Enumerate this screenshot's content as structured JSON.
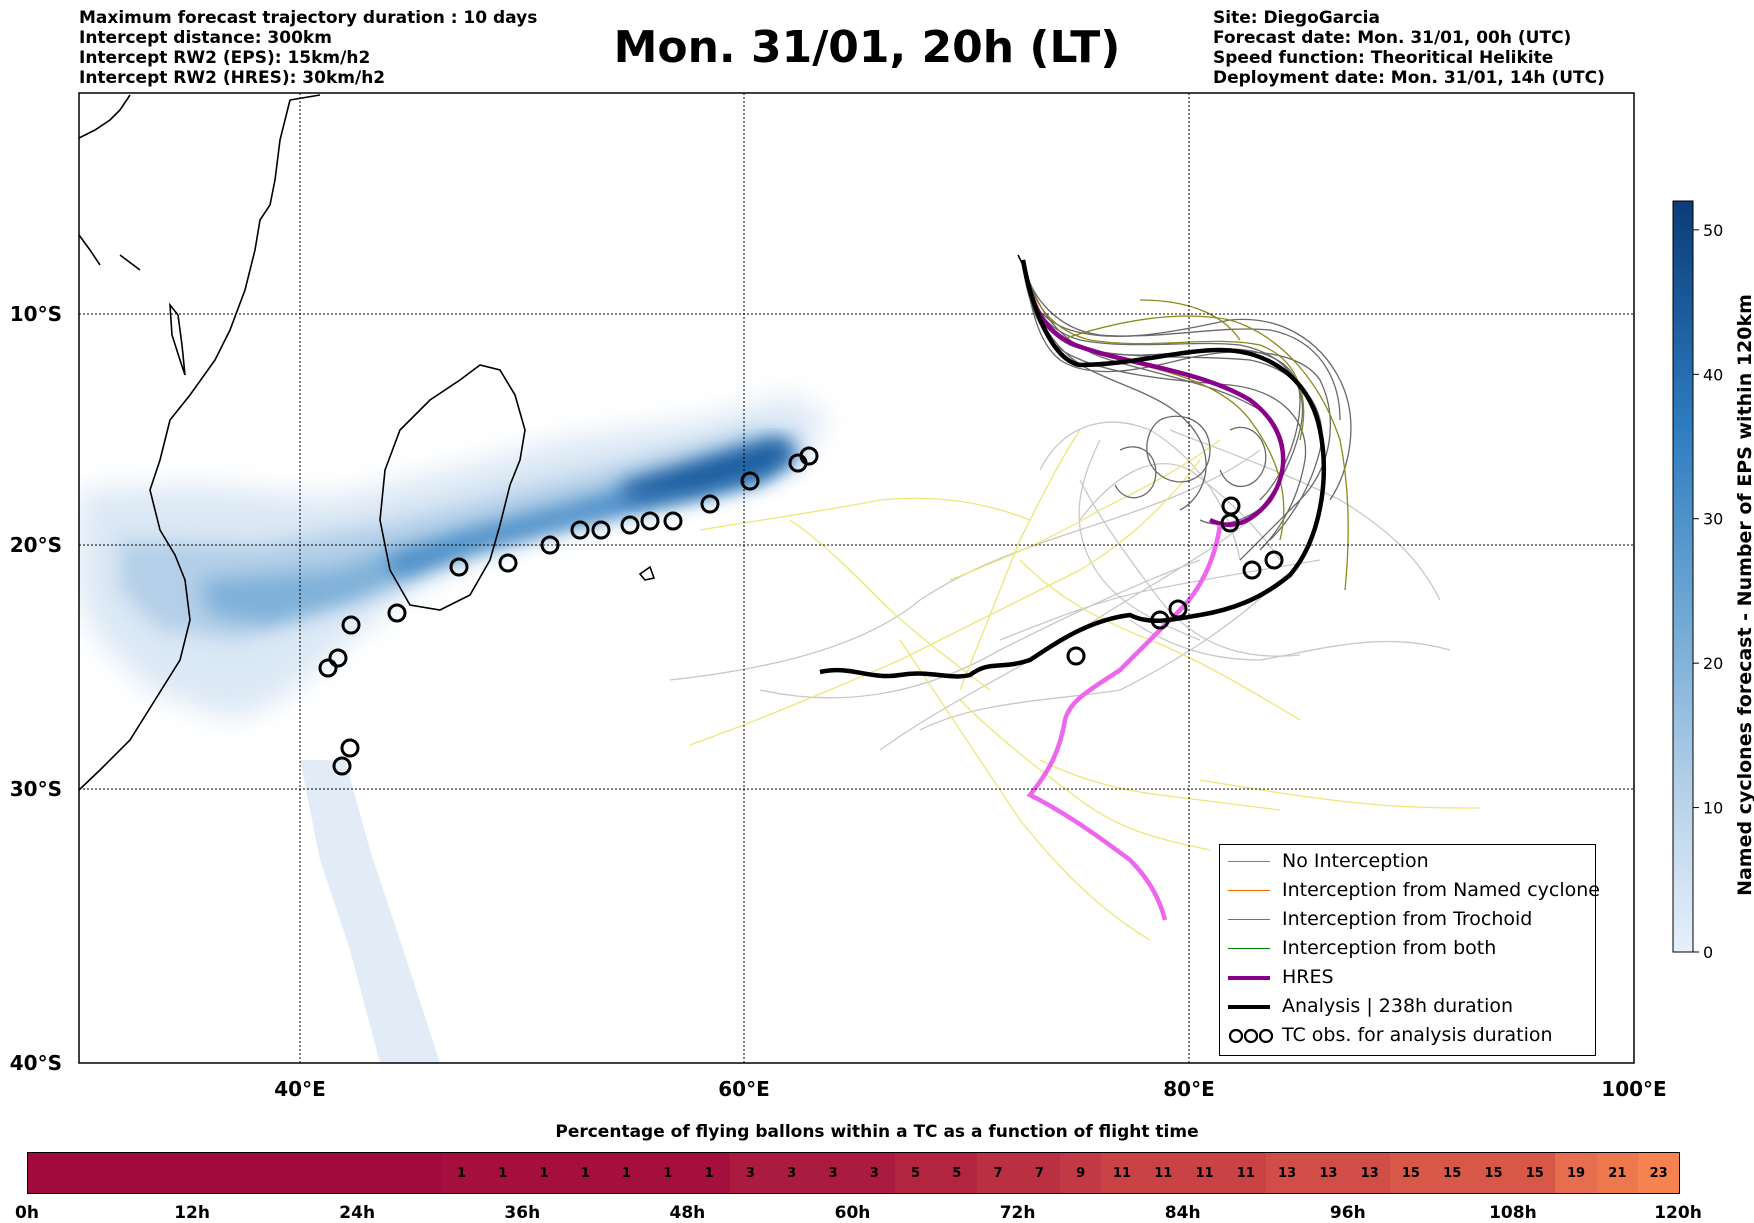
{
  "header_left": [
    "Maximum forecast trajectory duration : 10 days",
    "Intercept distance: 300km",
    "Intercept RW2 (EPS):  15km/h2",
    "Intercept RW2 (HRES): 30km/h2"
  ],
  "title": "Mon. 31/01, 20h (LT)",
  "header_right": [
    "Site: DiegoGarcia",
    "Forecast date: Mon. 31/01, 00h (UTC)",
    "Speed function: Theoritical Helikite",
    "Deployment date: Mon. 31/01, 14h (UTC)"
  ],
  "map": {
    "lon_ticks": [
      "40°E",
      "60°E",
      "80°E",
      "100°E"
    ],
    "lat_ticks": [
      "10°S",
      "20°S",
      "30°S",
      "40°S"
    ]
  },
  "legend": {
    "items": [
      {
        "label": "No Interception",
        "color": "#808080"
      },
      {
        "label": "Interception from Named cyclone",
        "color": "#ff6a00"
      },
      {
        "label": "Interception from Trochoid",
        "color": "#808000"
      },
      {
        "label": "Interception from both",
        "color": "#008000"
      },
      {
        "label": "HRES",
        "color": "#8b008b"
      },
      {
        "label": "Analysis | 238h duration",
        "color": "#000000"
      },
      {
        "label": "TC obs. for analysis duration",
        "color": "#000000"
      }
    ]
  },
  "colorbar": {
    "label": "Named cyclones forecast - Number of EPS within 120km",
    "ticks": [
      "0",
      "10",
      "20",
      "30",
      "40",
      "50"
    ],
    "range": [
      0,
      52
    ]
  },
  "bottom": {
    "title": "Percentage of flying ballons within a TC as a function of flight time",
    "values": [
      "",
      "",
      "",
      "",
      "",
      "",
      "",
      "",
      "",
      "",
      "1",
      "1",
      "1",
      "1",
      "1",
      "1",
      "1",
      "3",
      "3",
      "3",
      "3",
      "5",
      "5",
      "7",
      "7",
      "9",
      "11",
      "11",
      "11",
      "11",
      "13",
      "13",
      "13",
      "15",
      "15",
      "15",
      "15",
      "19",
      "21",
      "23"
    ],
    "ticks": [
      "0h",
      "12h",
      "24h",
      "36h",
      "48h",
      "60h",
      "72h",
      "84h",
      "96h",
      "108h",
      "120h"
    ]
  }
}
